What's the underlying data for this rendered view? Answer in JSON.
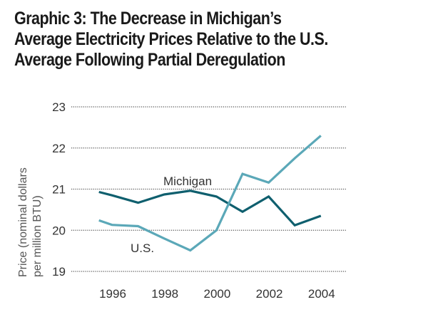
{
  "chart_data": {
    "type": "line",
    "title": "Graphic 3: The Decrease in Michigan’s Average Electricity Prices Relative to the U.S. Average Following Partial Deregulation",
    "title_lines": [
      "Graphic 3: The Decrease in Michigan’s",
      "Average Electricity Prices Relative to the U.S.",
      "Average Following Partial Deregulation"
    ],
    "xlabel": "",
    "ylabel_lines": [
      "Price (nominal dollars",
      "per million BTU)"
    ],
    "ylim": [
      19,
      23
    ],
    "xlim": [
      1995.5,
      2004
    ],
    "yticks": [
      19,
      20,
      21,
      22,
      23
    ],
    "xticks": [
      1996,
      1998,
      2000,
      2002,
      2004
    ],
    "grid": true,
    "x": [
      1995.5,
      1996,
      1997,
      1998,
      1999,
      2000,
      2001,
      2002,
      2003,
      2004
    ],
    "series": [
      {
        "name": "Michigan",
        "color": "#0f5f6e",
        "values": [
          20.93,
          20.85,
          20.67,
          20.87,
          20.96,
          20.82,
          20.45,
          20.82,
          20.12,
          20.35
        ]
      },
      {
        "name": "U.S.",
        "color": "#5ba8b8",
        "values": [
          20.24,
          20.13,
          20.1,
          19.8,
          19.51,
          20.0,
          21.37,
          21.16,
          21.75,
          22.3
        ]
      }
    ]
  }
}
